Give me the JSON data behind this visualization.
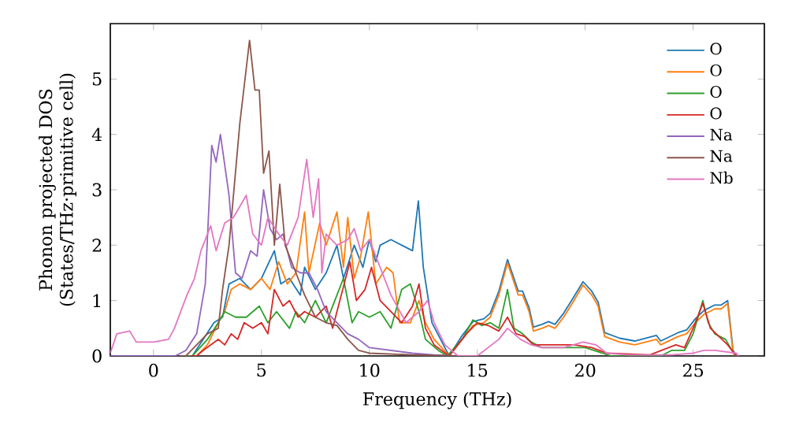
{
  "chart_data": {
    "type": "line",
    "xlabel": "Frequency (THz)",
    "ylabel": "Phonon projected DOS (States/THz·primitive cell)",
    "xlim": [
      -2,
      28.3
    ],
    "ylim": [
      0,
      6
    ],
    "xticks": [
      0,
      5,
      10,
      15,
      20,
      25
    ],
    "yticks": [
      0,
      1,
      2,
      3,
      4,
      5
    ],
    "legend": "top right",
    "grid": false,
    "marker": "none",
    "line_style": "solid",
    "series": [
      {
        "name": "O",
        "color": "#1f77b4",
        "x": [
          1.3,
          1.8,
          2.3,
          2.8,
          3.2,
          3.5,
          4.0,
          4.5,
          5.0,
          5.6,
          5.9,
          6.3,
          6.8,
          7.0,
          7.5,
          8.0,
          8.5,
          8.8,
          9.3,
          9.7,
          10.0,
          10.3,
          10.5,
          11.0,
          11.5,
          12.0,
          12.27,
          12.5,
          12.9,
          13.3,
          13.7,
          14.3,
          14.8,
          15.3,
          15.6,
          16.0,
          16.4,
          16.9,
          17.1,
          17.4,
          17.6,
          18.0,
          18.3,
          18.6,
          19.0,
          19.4,
          19.9,
          20.3,
          20.6,
          20.9,
          21.6,
          22.3,
          23.3,
          23.5,
          24.3,
          24.7,
          25.1,
          25.5,
          26.0,
          26.3,
          26.6,
          26.85,
          27.0
        ],
        "values": [
          0,
          0,
          0.3,
          0.6,
          0.7,
          1.3,
          1.4,
          1.2,
          1.4,
          1.9,
          1.3,
          1.4,
          1.1,
          1.6,
          1.2,
          1.5,
          2.0,
          1.4,
          2.0,
          1.6,
          2.1,
          1.7,
          2.0,
          2.1,
          2.0,
          1.9,
          2.8,
          1.6,
          0.6,
          0.3,
          0,
          0.37,
          0.62,
          0.67,
          0.77,
          1.17,
          1.74,
          1.17,
          1.17,
          0.87,
          0.52,
          0.57,
          0.62,
          0.57,
          0.77,
          1.02,
          1.34,
          1.17,
          0.97,
          0.42,
          0.32,
          0.27,
          0.37,
          0.27,
          0.42,
          0.47,
          0.67,
          0.82,
          0.92,
          0.92,
          1.0,
          0.1,
          0
        ]
      },
      {
        "name": "O",
        "color": "#ff7f0e",
        "x": [
          1.6,
          2.0,
          2.5,
          3.0,
          3.3,
          3.6,
          4.0,
          4.5,
          5.0,
          5.4,
          5.8,
          6.2,
          6.6,
          7.0,
          7.2,
          7.7,
          8.0,
          8.5,
          8.8,
          9.0,
          9.3,
          9.6,
          9.95,
          10.3,
          10.8,
          11.1,
          11.4,
          11.9,
          12.3,
          12.6,
          13.0,
          13.7,
          14.3,
          14.8,
          15.3,
          15.6,
          16.0,
          16.4,
          16.9,
          17.1,
          17.4,
          17.6,
          18.0,
          18.3,
          18.6,
          19.0,
          19.4,
          19.9,
          20.3,
          20.6,
          20.9,
          21.6,
          22.3,
          23.3,
          23.5,
          24.3,
          24.7,
          25.1,
          25.5,
          26.0,
          26.3,
          26.6,
          26.85,
          27.0
        ],
        "values": [
          0,
          0,
          0.2,
          0.6,
          0.8,
          1.2,
          1.3,
          1.2,
          1.4,
          1.2,
          1.7,
          1.3,
          1.5,
          2.6,
          1.5,
          2.4,
          2.0,
          2.6,
          1.6,
          2.5,
          1.4,
          1.8,
          2.6,
          1.3,
          1.6,
          1.5,
          0.6,
          0.6,
          1.0,
          0.6,
          0.3,
          0,
          0.3,
          0.55,
          0.6,
          0.7,
          1.1,
          1.68,
          1.1,
          1.1,
          0.8,
          0.45,
          0.5,
          0.55,
          0.5,
          0.7,
          0.95,
          1.28,
          1.1,
          0.9,
          0.35,
          0.25,
          0.2,
          0.3,
          0.2,
          0.35,
          0.4,
          0.6,
          0.75,
          0.85,
          0.85,
          0.95,
          0.05,
          0
        ]
      },
      {
        "name": "O",
        "color": "#2ca02c",
        "x": [
          1.5,
          1.8,
          2.5,
          3.0,
          3.3,
          3.8,
          4.3,
          4.9,
          5.3,
          5.7,
          6.3,
          6.6,
          7.0,
          7.5,
          8.0,
          8.5,
          8.8,
          9.2,
          9.5,
          10.0,
          10.5,
          11.0,
          11.5,
          11.9,
          12.3,
          12.6,
          13.2,
          13.6,
          14.3,
          14.8,
          15.2,
          15.6,
          16.0,
          16.4,
          16.7,
          17.1,
          17.5,
          18.0,
          20.0,
          20.8,
          21.2,
          23.5,
          24.0,
          24.6,
          25.0,
          25.45,
          25.7,
          26.0,
          26.5,
          26.8,
          27.0
        ],
        "values": [
          0,
          0,
          0.3,
          0.6,
          0.8,
          0.7,
          0.7,
          0.9,
          0.6,
          0.8,
          0.5,
          0.8,
          0.6,
          1.0,
          0.6,
          1.1,
          1.4,
          0.6,
          0.8,
          0.7,
          0.8,
          0.5,
          1.2,
          1.3,
          0.8,
          0.3,
          0.1,
          0,
          0.3,
          0.65,
          0.55,
          0.6,
          0.5,
          1.2,
          0.5,
          0.4,
          0.25,
          0.15,
          0.15,
          0.05,
          0,
          0,
          0.1,
          0.1,
          0.4,
          1.0,
          0.6,
          0.4,
          0.3,
          0.1,
          0
        ]
      },
      {
        "name": "O",
        "color": "#d62728",
        "x": [
          1.7,
          2.0,
          2.3,
          3.0,
          3.3,
          3.6,
          3.9,
          4.2,
          4.6,
          5.0,
          5.3,
          5.6,
          6.0,
          6.3,
          6.7,
          7.0,
          7.5,
          8.0,
          8.3,
          8.7,
          9.1,
          9.4,
          9.8,
          10.1,
          10.5,
          11.0,
          11.5,
          12.0,
          12.3,
          12.6,
          13.0,
          13.7,
          14.5,
          15.0,
          15.5,
          16.0,
          16.4,
          16.8,
          17.2,
          17.6,
          18.5,
          19.5,
          20.3,
          21.0,
          23.0,
          24.2,
          24.6,
          25.0,
          25.45,
          25.8,
          26.2,
          26.6,
          27.0
        ],
        "values": [
          0,
          0,
          0.1,
          0.3,
          0.2,
          0.4,
          0.3,
          0.6,
          0.5,
          0.6,
          0.4,
          1.2,
          0.9,
          1.0,
          0.7,
          0.8,
          0.7,
          0.9,
          0.5,
          1.1,
          1.7,
          1.0,
          1.2,
          1.6,
          1.0,
          0.8,
          0.6,
          0.9,
          1.3,
          0.5,
          0.2,
          0,
          0.4,
          0.6,
          0.55,
          0.45,
          0.7,
          0.4,
          0.35,
          0.2,
          0.2,
          0.2,
          0.15,
          0.05,
          0.02,
          0.2,
          0.15,
          0.5,
          0.95,
          0.5,
          0.35,
          0.2,
          0
        ]
      },
      {
        "name": "Na",
        "color": "#9467bd",
        "x": [
          -2,
          1.0,
          1.5,
          2.0,
          2.4,
          2.7,
          2.9,
          3.1,
          3.5,
          3.8,
          4.1,
          4.5,
          4.8,
          5.1,
          5.4,
          5.7,
          6.0,
          6.4,
          6.8,
          7.2,
          7.6,
          8.0,
          8.5,
          9.0,
          9.5,
          10.0,
          11.0,
          12.0,
          13.0,
          14.0
        ],
        "values": [
          0,
          0,
          0.1,
          0.4,
          1.3,
          3.8,
          3.5,
          4.0,
          2.9,
          1.5,
          1.4,
          1.9,
          1.8,
          3.0,
          2.3,
          2.1,
          2.2,
          1.6,
          1.5,
          1.5,
          1.2,
          0.8,
          0.6,
          0.4,
          0.3,
          0.15,
          0.1,
          0.05,
          0.02,
          0
        ]
      },
      {
        "name": "Na",
        "color": "#8c564b",
        "x": [
          1.2,
          1.5,
          2.0,
          2.5,
          3.0,
          3.2,
          3.5,
          4.0,
          4.45,
          4.7,
          4.9,
          5.1,
          5.35,
          5.6,
          5.85,
          6.1,
          6.6,
          7.0,
          7.5,
          8.0,
          8.5,
          9.0,
          9.5,
          10.0,
          12.0,
          14.0
        ],
        "values": [
          0,
          0,
          0.2,
          0.4,
          0.5,
          1.2,
          2.0,
          4.2,
          5.7,
          4.8,
          4.8,
          3.3,
          3.7,
          2.0,
          3.1,
          2.0,
          1.5,
          1.1,
          0.7,
          0.6,
          0.55,
          0.3,
          0.1,
          0.05,
          0.02,
          0
        ]
      },
      {
        "name": "Nb",
        "color": "#e377c2",
        "x": [
          -2,
          -1.7,
          -1.1,
          -0.8,
          0.0,
          0.7,
          0.97,
          1.55,
          1.9,
          2.2,
          2.65,
          2.9,
          3.3,
          3.7,
          4.3,
          4.6,
          5.0,
          5.3,
          5.8,
          6.2,
          6.7,
          7.1,
          7.4,
          7.65,
          7.8,
          8.0,
          8.5,
          9.0,
          9.3,
          9.6,
          10.0,
          10.5,
          11.0,
          11.7,
          12.3,
          12.7,
          13.0,
          13.5,
          14.1,
          15.0,
          16.0,
          16.4,
          17.0,
          17.5,
          18.0,
          19.0,
          19.9,
          20.5,
          21.0,
          22.0,
          24.0,
          25.0,
          25.5,
          26.0,
          27.0,
          27.1
        ],
        "values": [
          0.05,
          0.4,
          0.45,
          0.25,
          0.25,
          0.3,
          0.5,
          1.1,
          1.4,
          1.9,
          2.35,
          1.9,
          2.4,
          2.5,
          2.9,
          2.2,
          2.0,
          2.5,
          2.2,
          2.0,
          2.5,
          3.55,
          2.5,
          3.2,
          1.5,
          2.2,
          2.0,
          2.1,
          2.3,
          1.9,
          2.1,
          1.6,
          1.1,
          0.6,
          0.8,
          1.0,
          0.6,
          0.2,
          0,
          0,
          0.3,
          0.5,
          0.3,
          0.2,
          0.15,
          0.15,
          0.25,
          0.2,
          0.05,
          0.02,
          0.02,
          0.05,
          0.1,
          0.1,
          0.05,
          0
        ]
      }
    ]
  }
}
